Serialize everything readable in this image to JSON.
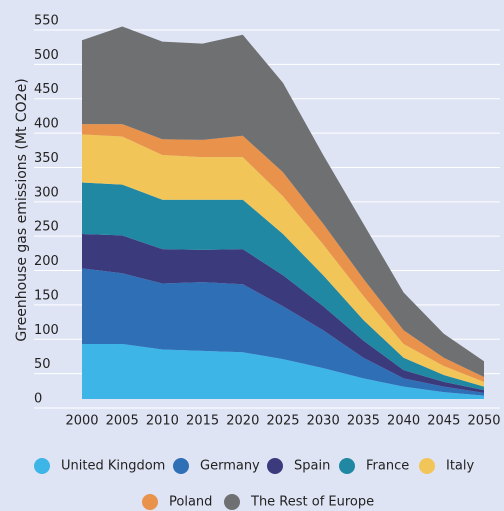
{
  "chart_data": {
    "type": "stacked_area",
    "y_label": "Greenhouse gas emissions (Mt CO2e)",
    "categories": [
      "2000",
      "2005",
      "2010",
      "2015",
      "2020",
      "2025",
      "2030",
      "2035",
      "2040",
      "2045",
      "2050"
    ],
    "series": [
      {
        "name": "United Kingdom",
        "color": "#3db5e6",
        "values": [
          80,
          80,
          72,
          70,
          68,
          58,
          45,
          30,
          18,
          10,
          5
        ]
      },
      {
        "name": "Germany",
        "color": "#2f6fb6",
        "values": [
          110,
          103,
          96,
          100,
          99,
          77,
          55,
          30,
          12,
          8,
          4
        ]
      },
      {
        "name": "Spain",
        "color": "#3b3a7c",
        "values": [
          50,
          55,
          50,
          47,
          51,
          45,
          35,
          25,
          12,
          7,
          4
        ]
      },
      {
        "name": "France",
        "color": "#2088a2",
        "values": [
          75,
          74,
          72,
          73,
          72,
          60,
          45,
          30,
          18,
          10,
          5
        ]
      },
      {
        "name": "Italy",
        "color": "#f2c558",
        "values": [
          70,
          70,
          65,
          62,
          62,
          55,
          45,
          35,
          20,
          13,
          7
        ]
      },
      {
        "name": "Poland",
        "color": "#e8924b",
        "values": [
          15,
          18,
          23,
          25,
          31,
          35,
          30,
          25,
          20,
          12,
          7
        ]
      },
      {
        "name": "The Rest of Europe",
        "color": "#6f7072",
        "values": [
          122,
          142,
          142,
          140,
          147,
          130,
          100,
          80,
          55,
          35,
          23
        ]
      }
    ],
    "ylim": [
      0,
      550
    ],
    "yticks": [
      0,
      50,
      100,
      150,
      200,
      250,
      300,
      350,
      400,
      450,
      500,
      550
    ],
    "grid": true
  }
}
